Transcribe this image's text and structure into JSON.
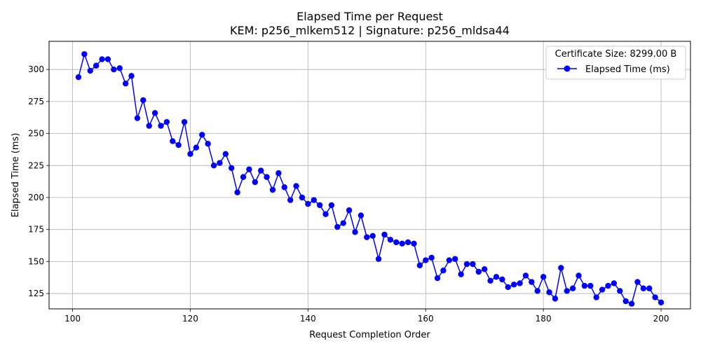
{
  "chart_data": {
    "type": "line",
    "title": "Elapsed Time per Request",
    "subtitle": "KEM: p256_mlkem512 | Signature: p256_mldsa44",
    "xlabel": "Request Completion Order",
    "ylabel": "Elapsed Time (ms)",
    "xlim": [
      96,
      205
    ],
    "ylim": [
      113,
      322
    ],
    "xticks": [
      100,
      120,
      140,
      160,
      180,
      200
    ],
    "yticks": [
      125,
      150,
      175,
      200,
      225,
      250,
      275,
      300
    ],
    "grid": true,
    "legend": {
      "title": "Certificate Size: 8299.00 B",
      "placement": "top-right"
    },
    "series": [
      {
        "name": "Elapsed Time (ms)",
        "color": "#0000ff",
        "marker": "circle",
        "x": [
          101,
          102,
          103,
          104,
          105,
          106,
          107,
          108,
          109,
          110,
          111,
          112,
          113,
          114,
          115,
          116,
          117,
          118,
          119,
          120,
          121,
          122,
          123,
          124,
          125,
          126,
          127,
          128,
          129,
          130,
          131,
          132,
          133,
          134,
          135,
          136,
          137,
          138,
          139,
          140,
          141,
          142,
          143,
          144,
          145,
          146,
          147,
          148,
          149,
          150,
          151,
          152,
          153,
          154,
          155,
          156,
          157,
          158,
          159,
          160,
          161,
          162,
          163,
          164,
          165,
          166,
          167,
          168,
          169,
          170,
          171,
          172,
          173,
          174,
          175,
          176,
          177,
          178,
          179,
          180,
          181,
          182,
          183,
          184,
          185,
          186,
          187,
          188,
          189,
          190,
          191,
          192,
          193,
          194,
          195,
          196,
          197,
          198,
          199,
          200
        ],
        "y": [
          294,
          312,
          299,
          303,
          308,
          308,
          300,
          301,
          289,
          295,
          262,
          276,
          256,
          266,
          256,
          259,
          244,
          241,
          259,
          234,
          239,
          249,
          242,
          225,
          227,
          234,
          223,
          204,
          216,
          222,
          212,
          221,
          216,
          206,
          219,
          208,
          198,
          209,
          200,
          195,
          198,
          194,
          187,
          194,
          177,
          180,
          190,
          173,
          186,
          169,
          170,
          152,
          171,
          167,
          165,
          164,
          165,
          164,
          147,
          151,
          153,
          137,
          143,
          151,
          152,
          140,
          148,
          148,
          142,
          144,
          135,
          138,
          136,
          130,
          132,
          133,
          139,
          134,
          127,
          138,
          126,
          121,
          145,
          127,
          129,
          139,
          131,
          131,
          122,
          128,
          131,
          133,
          127,
          119,
          117,
          134,
          129,
          129,
          122,
          118
        ]
      }
    ]
  }
}
